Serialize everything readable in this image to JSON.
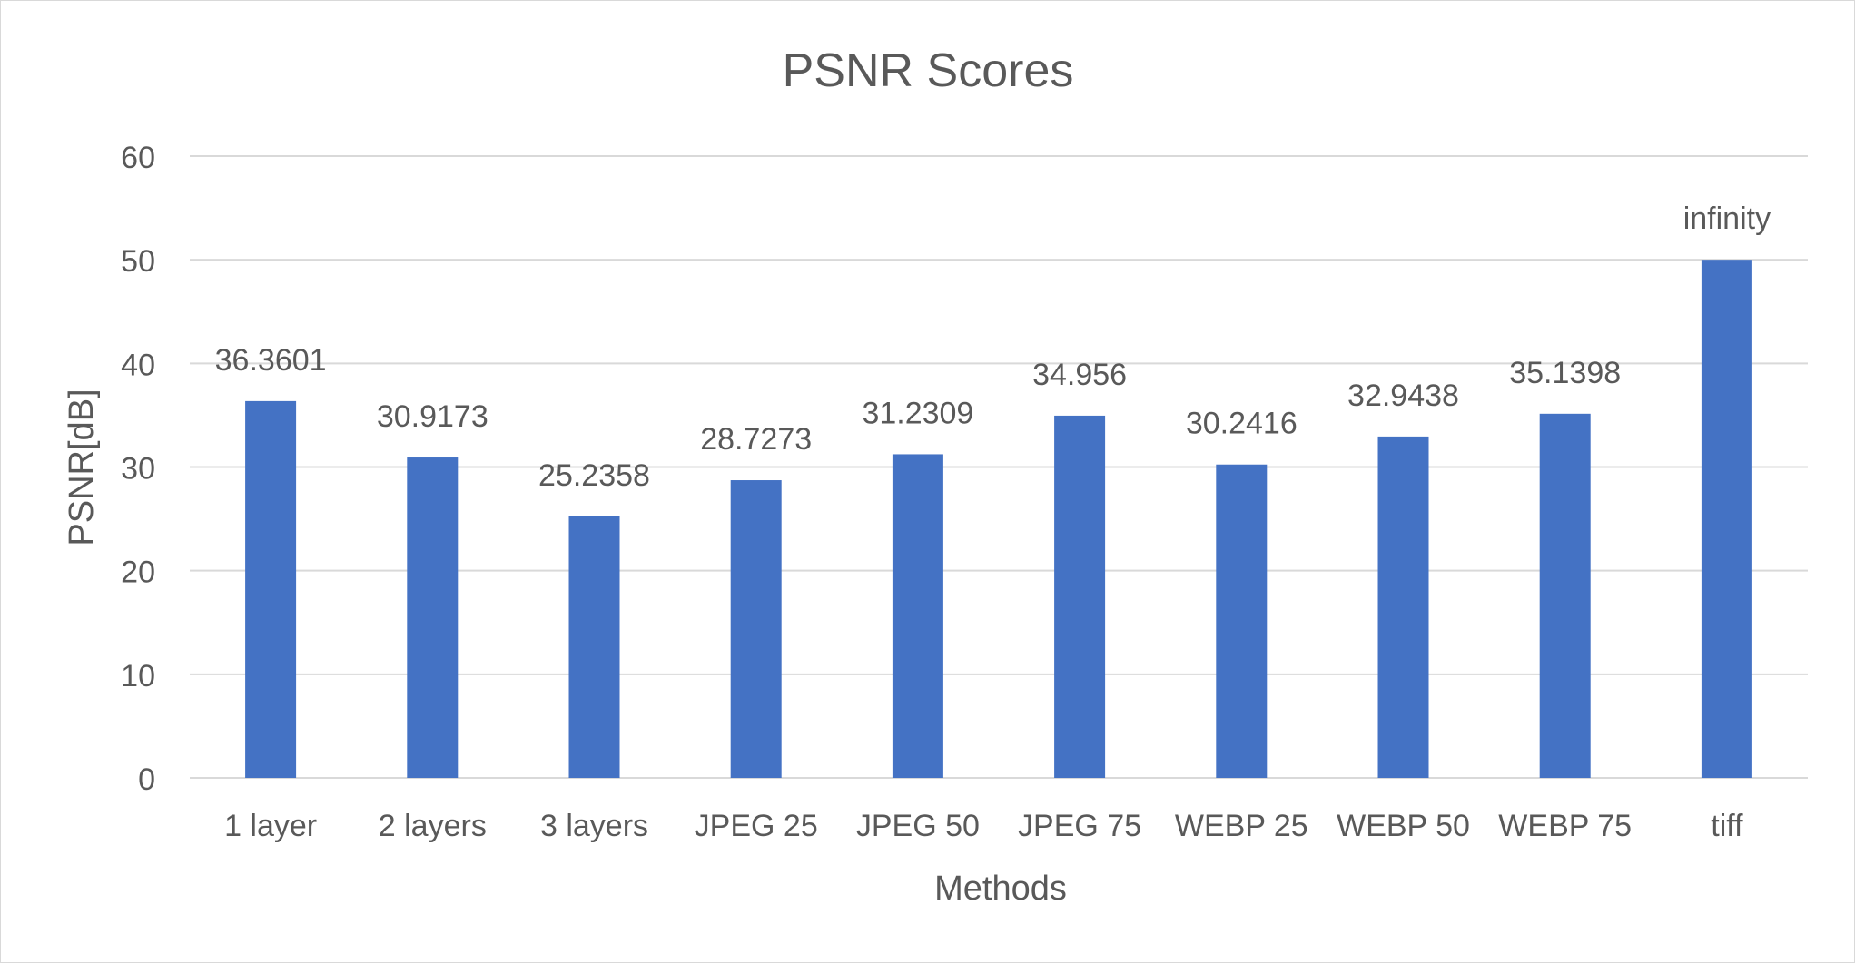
{
  "chart_data": {
    "type": "bar",
    "title": "PSNR Scores",
    "xlabel": "Methods",
    "ylabel": "PSNR[dB]",
    "ylim": [
      0,
      60
    ],
    "yticks": [
      0,
      10,
      20,
      30,
      40,
      50,
      60
    ],
    "grid": true,
    "legend": "none",
    "categories": [
      "1 layer",
      "2 layers",
      "3 layers",
      "JPEG 25",
      "JPEG 50",
      "JPEG 75",
      "WEBP 25",
      "WEBP 50",
      "WEBP 75",
      "tiff"
    ],
    "values": [
      36.3601,
      30.9173,
      25.2358,
      28.7273,
      31.2309,
      34.956,
      30.2416,
      32.9438,
      35.1398,
      50
    ],
    "data_labels": [
      "36.3601",
      "30.9173",
      "25.2358",
      "28.7273",
      "31.2309",
      "34.956",
      "30.2416",
      "32.9438",
      "35.1398",
      "infinity"
    ],
    "colors": {
      "bar": "#4472c4",
      "grid": "#d9d9d9",
      "text": "#595959"
    }
  }
}
